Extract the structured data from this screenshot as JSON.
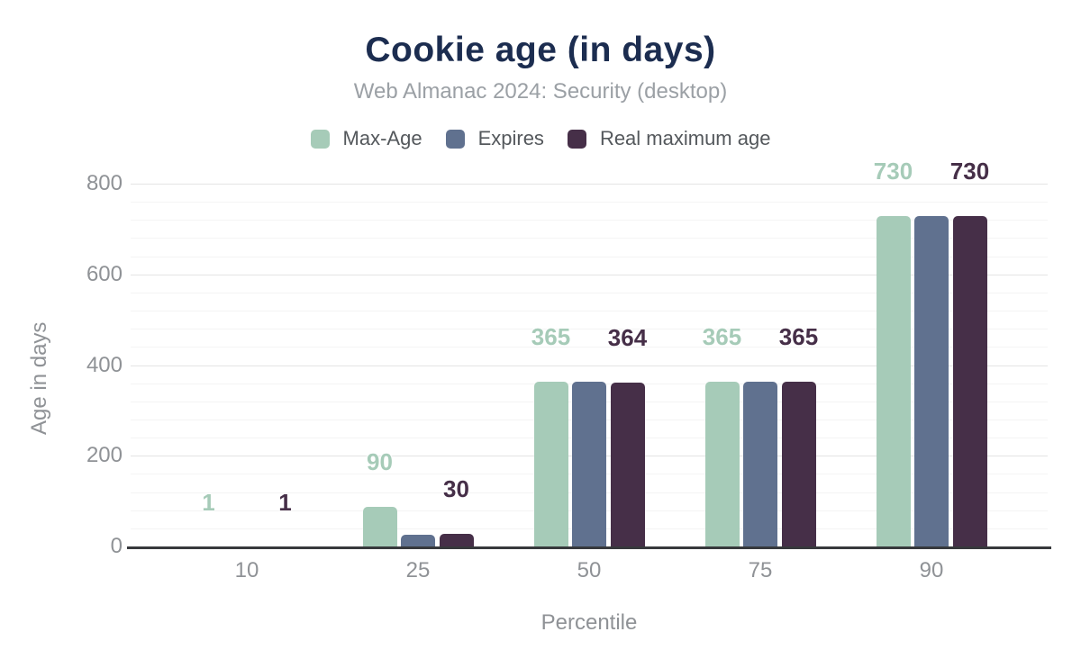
{
  "chart_data": {
    "type": "bar",
    "title": "Cookie age (in days)",
    "subtitle": "Web Almanac 2024: Security (desktop)",
    "xlabel": "Percentile",
    "ylabel": "Age in days",
    "categories": [
      "10",
      "25",
      "50",
      "75",
      "90"
    ],
    "series": [
      {
        "name": "Max-Age",
        "color": "#a6cbb8",
        "values": [
          1,
          90,
          365,
          365,
          730
        ],
        "labels_visible": true,
        "labels": [
          "1",
          "90",
          "365",
          "365",
          "730"
        ],
        "label_color": "#a6cbb8"
      },
      {
        "name": "Expires",
        "color": "#60718f",
        "values": [
          1,
          27,
          365,
          365,
          730
        ],
        "labels_visible": false,
        "labels": [
          "",
          "",
          "",
          "",
          ""
        ],
        "label_color": "#60718f"
      },
      {
        "name": "Real maximum age",
        "color": "#462f48",
        "values": [
          1,
          30,
          364,
          365,
          730
        ],
        "labels_visible": true,
        "labels": [
          "1",
          "30",
          "364",
          "365",
          "730"
        ],
        "label_color": "#462f48"
      }
    ],
    "ylim": [
      0,
      800
    ],
    "yticks": [
      "0",
      "200",
      "400",
      "600",
      "800"
    ],
    "ytick_interval": 200,
    "minor_tick_interval": 40,
    "grid": true,
    "legend_position": "top"
  },
  "colors": {
    "background": "#ffffff",
    "title": "#1c2d50",
    "subtitle": "#9ba0a5",
    "legend_text": "#54585c",
    "axis_text": "#8f9296",
    "gridline_major": "#e4e4e4",
    "gridline_minor": "#f4f4f4",
    "axis_line": "#37393c"
  }
}
